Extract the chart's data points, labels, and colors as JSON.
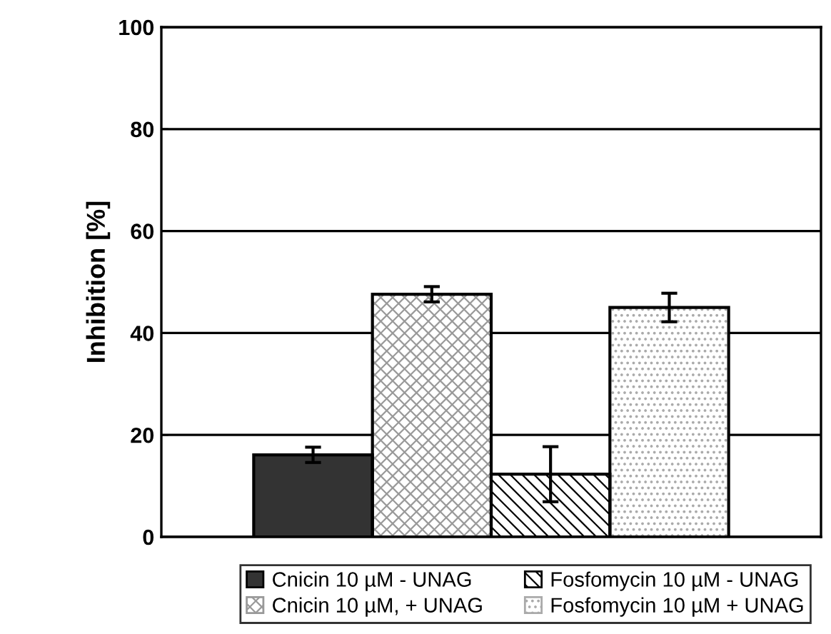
{
  "chart_data": {
    "type": "bar",
    "ylabel": "Inhibition [%]",
    "categories": [
      null
    ],
    "series": [
      {
        "name": "Cnicin 10 µM - UNAG",
        "color": "#333333",
        "values": [
          16.1
        ],
        "errors": [
          1.5
        ]
      },
      {
        "name": "Cnicin 10 µM, + UNAG",
        "color": "#999999",
        "values": [
          47.6
        ],
        "errors": [
          1.5
        ]
      },
      {
        "name": "Fosfomycin 10 µM - UNAG",
        "color": "#000000",
        "values": [
          12.3
        ],
        "errors": [
          5.4
        ]
      },
      {
        "name": "Fosfomycin 10 µM + UNAG",
        "color": "#aaaaaa",
        "values": [
          45.0
        ],
        "errors": [
          2.8
        ]
      }
    ],
    "ylim": [
      0,
      100
    ],
    "yticks": [
      0,
      20,
      40,
      60,
      80,
      100
    ],
    "grid": "y",
    "legend": "bottom",
    "tick_labels": "y"
  }
}
